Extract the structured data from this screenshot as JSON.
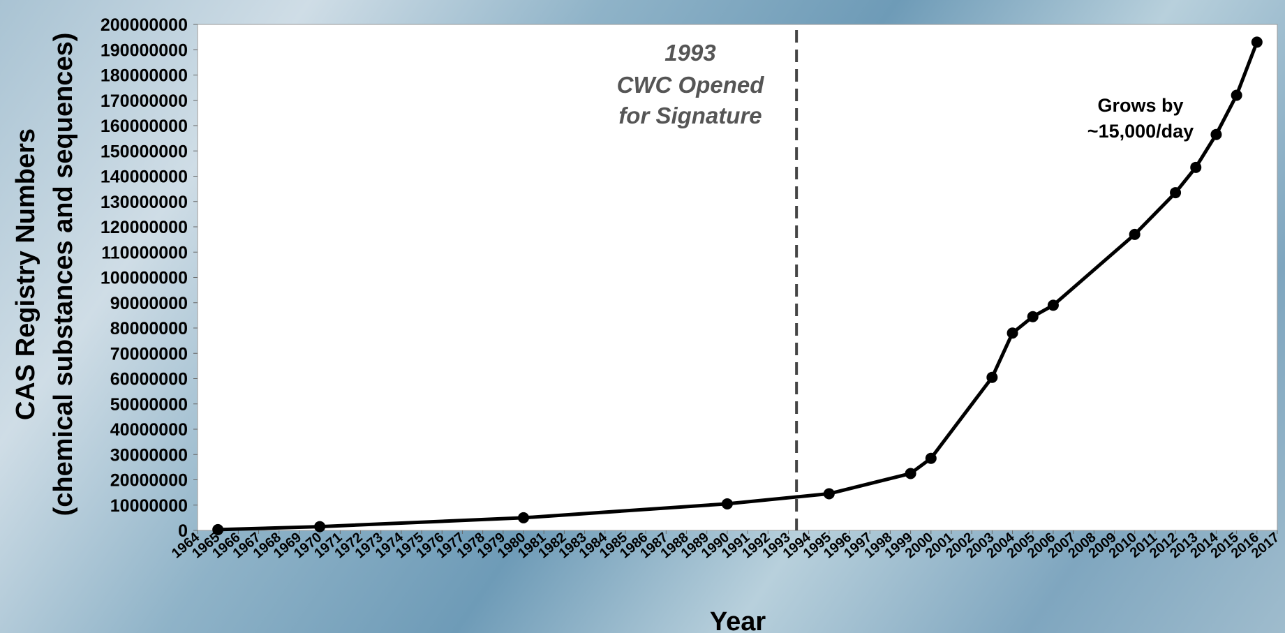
{
  "chart_data": {
    "type": "line",
    "xlabel": "Year",
    "ylabel_line1": "CAS Registry Numbers",
    "ylabel_line2": "(chemical substances and sequences)",
    "categories": [
      "1964",
      "1965",
      "1966",
      "1967",
      "1968",
      "1969",
      "1970",
      "1971",
      "1972",
      "1973",
      "1974",
      "1975",
      "1976",
      "1977",
      "1978",
      "1979",
      "1980",
      "1981",
      "1982",
      "1983",
      "1984",
      "1985",
      "1986",
      "1987",
      "1988",
      "1989",
      "1990",
      "1991",
      "1992",
      "1993",
      "1994",
      "1995",
      "1996",
      "1997",
      "1998",
      "1999",
      "2000",
      "2001",
      "2002",
      "2003",
      "2004",
      "2005",
      "2006",
      "2007",
      "2008",
      "2009",
      "2010",
      "2011",
      "2012",
      "2013",
      "2014",
      "2015",
      "2016",
      "2017"
    ],
    "series": [
      {
        "points": [
          {
            "x": 1965,
            "y": 300000
          },
          {
            "x": 1970,
            "y": 1500000
          },
          {
            "x": 1980,
            "y": 5000000
          },
          {
            "x": 1990,
            "y": 10500000
          },
          {
            "x": 1995,
            "y": 14500000
          },
          {
            "x": 1999,
            "y": 22500000
          },
          {
            "x": 2000,
            "y": 28500000
          },
          {
            "x": 2003,
            "y": 60500000
          },
          {
            "x": 2004,
            "y": 78000000
          },
          {
            "x": 2005,
            "y": 84500000
          },
          {
            "x": 2006,
            "y": 89000000
          },
          {
            "x": 2010,
            "y": 117000000
          },
          {
            "x": 2012,
            "y": 133500000
          },
          {
            "x": 2013,
            "y": 143500000
          },
          {
            "x": 2014,
            "y": 156500000
          },
          {
            "x": 2015,
            "y": 172000000
          },
          {
            "x": 2016,
            "y": 193000000
          }
        ]
      }
    ],
    "ylim": [
      0,
      200000000
    ],
    "y_ticks": [
      0,
      10000000,
      20000000,
      30000000,
      40000000,
      50000000,
      60000000,
      70000000,
      80000000,
      90000000,
      100000000,
      110000000,
      120000000,
      130000000,
      140000000,
      150000000,
      160000000,
      170000000,
      180000000,
      190000000,
      200000000
    ],
    "y_tick_labels": [
      "0",
      "10000000",
      "20000000",
      "30000000",
      "40000000",
      "50000000",
      "60000000",
      "70000000",
      "80000000",
      "90000000",
      "100000000",
      "110000000",
      "120000000",
      "130000000",
      "140000000",
      "150000000",
      "160000000",
      "170000000",
      "180000000",
      "190000000",
      "200000000"
    ],
    "marker_line": {
      "x": 1993.4,
      "label_year": "1993",
      "label_line2": "CWC Opened",
      "label_line3": "for Signature"
    },
    "annotation": {
      "line1": "Grows by",
      "line2": "~15,000/day"
    },
    "grid": false,
    "legend": "none",
    "colors": {
      "line": "#000000",
      "marker": "#000000",
      "dashed_line": "#444444",
      "plot_bg": "#ffffff",
      "grey_text": "#555555"
    }
  }
}
